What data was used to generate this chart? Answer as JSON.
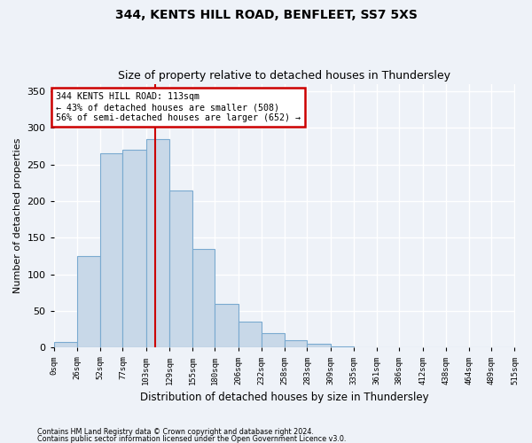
{
  "title1": "344, KENTS HILL ROAD, BENFLEET, SS7 5XS",
  "title2": "Size of property relative to detached houses in Thundersley",
  "xlabel": "Distribution of detached houses by size in Thundersley",
  "ylabel": "Number of detached properties",
  "footer1": "Contains HM Land Registry data © Crown copyright and database right 2024.",
  "footer2": "Contains public sector information licensed under the Open Government Licence v3.0.",
  "annotation_line1": "344 KENTS HILL ROAD: 113sqm",
  "annotation_line2": "← 43% of detached houses are smaller (508)",
  "annotation_line3": "56% of semi-detached houses are larger (652) →",
  "property_size": 113,
  "bin_edges": [
    0,
    26,
    52,
    77,
    103,
    129,
    155,
    180,
    206,
    232,
    258,
    283,
    309,
    335,
    361,
    386,
    412,
    438,
    464,
    489,
    515
  ],
  "bar_heights": [
    8,
    125,
    265,
    270,
    284,
    215,
    135,
    60,
    35,
    20,
    10,
    5,
    2,
    1,
    0,
    0,
    0,
    0,
    0,
    0
  ],
  "bar_color": "#c8d8e8",
  "bar_edge_color": "#7aaad0",
  "vline_color": "#cc0000",
  "vline_x": 113,
  "ylim": [
    0,
    360
  ],
  "yticks": [
    0,
    50,
    100,
    150,
    200,
    250,
    300,
    350
  ],
  "background_color": "#eef2f8",
  "grid_color": "#ffffff",
  "annotation_box_edge": "#cc0000",
  "annotation_box_fill": "#ffffff"
}
